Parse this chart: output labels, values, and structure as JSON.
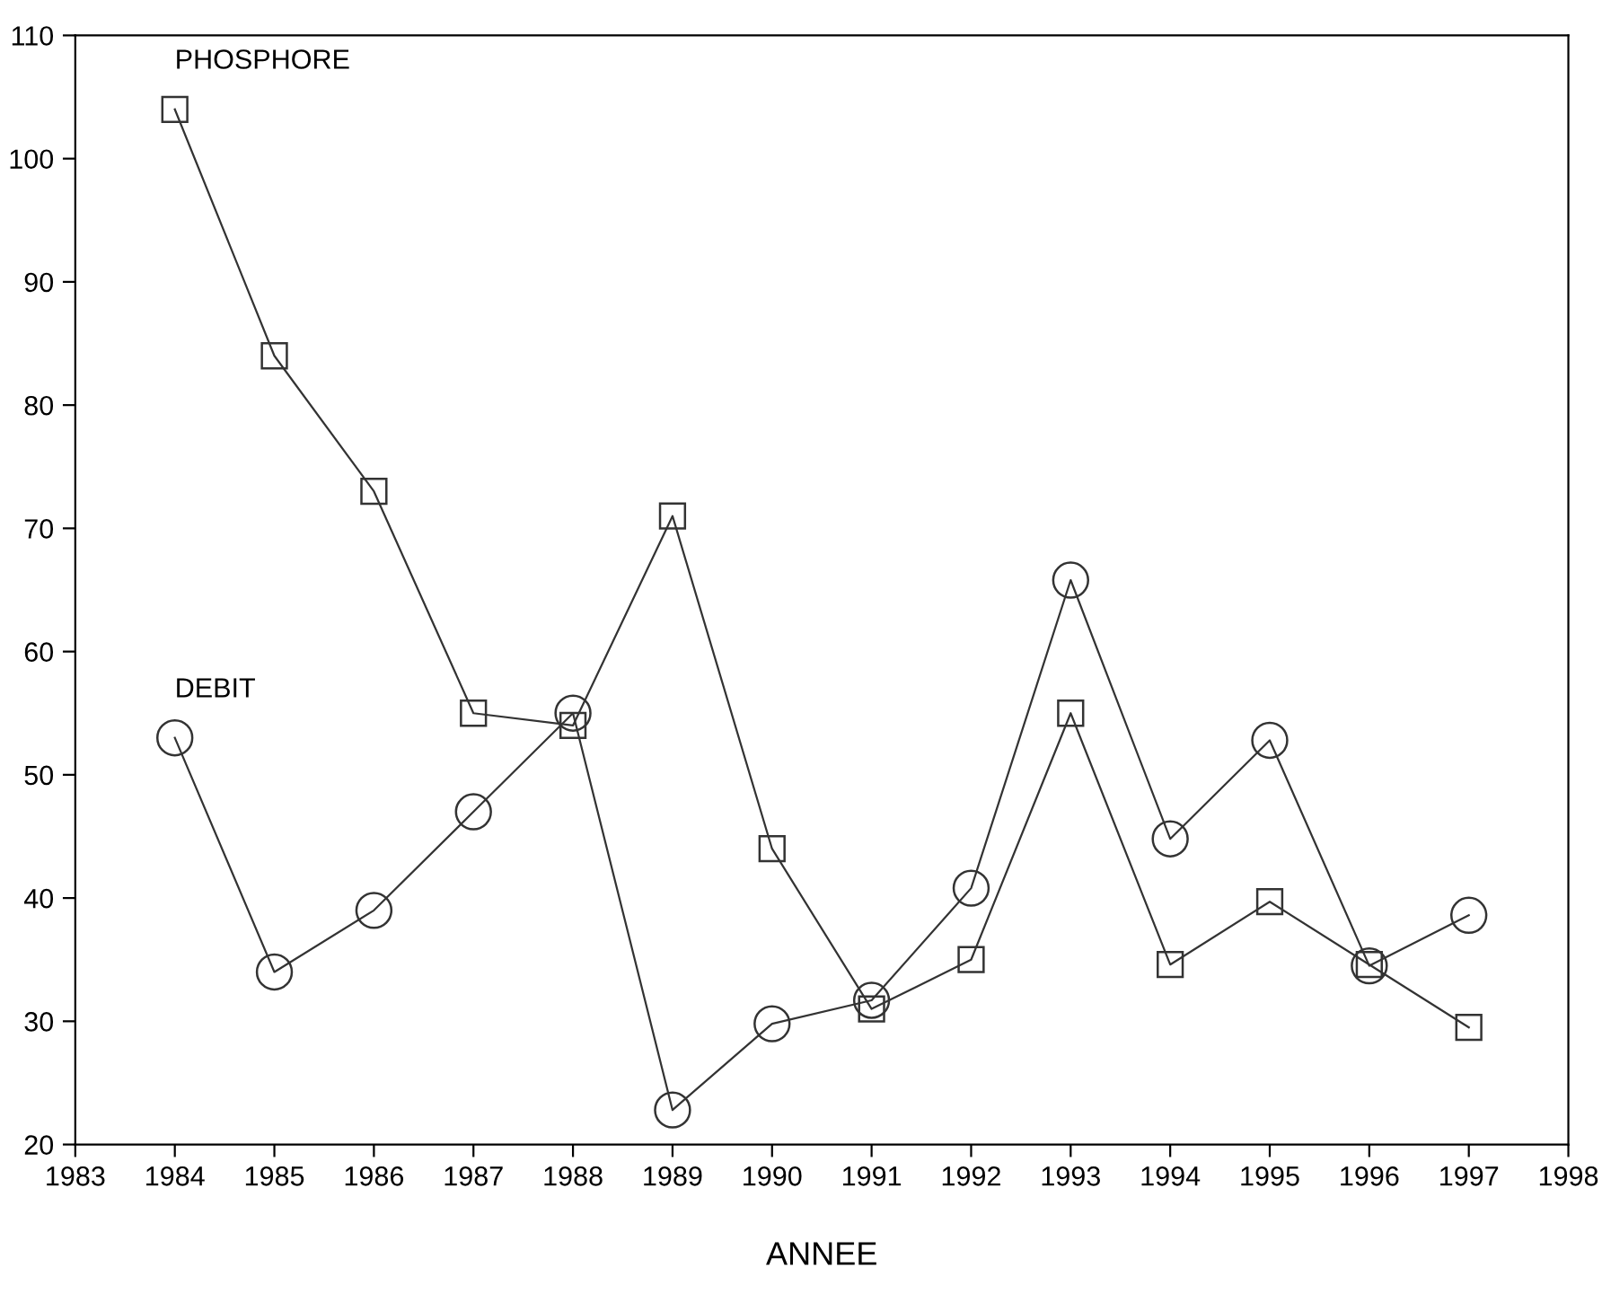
{
  "chart_data": {
    "type": "line",
    "xlabel": "ANNEE",
    "x": [
      1984,
      1985,
      1986,
      1987,
      1988,
      1989,
      1990,
      1991,
      1992,
      1993,
      1994,
      1995,
      1996,
      1997
    ],
    "series": [
      {
        "name": "PHOSPHORE",
        "color": "#333333",
        "marker": "square",
        "values": [
          104,
          84,
          73,
          55,
          54,
          71,
          44,
          31,
          35,
          55,
          34.6,
          39.7,
          34.6,
          29.5
        ]
      },
      {
        "name": "DEBIT",
        "color": "#333333",
        "marker": "circle",
        "values": [
          53,
          34,
          39,
          47,
          55,
          22.8,
          29.8,
          31.7,
          40.8,
          65.8,
          44.8,
          52.8,
          34.5,
          38.6
        ]
      }
    ],
    "xlim": [
      1983,
      1998
    ],
    "xticks": [
      1983,
      1984,
      1985,
      1986,
      1987,
      1988,
      1989,
      1990,
      1991,
      1992,
      1993,
      1994,
      1995,
      1996,
      1997,
      1998
    ],
    "ylim": [
      20,
      110
    ],
    "yticks": [
      20,
      30,
      40,
      50,
      60,
      70,
      80,
      90,
      100,
      110
    ],
    "grid": false,
    "legend": false,
    "line_style": "solid"
  }
}
